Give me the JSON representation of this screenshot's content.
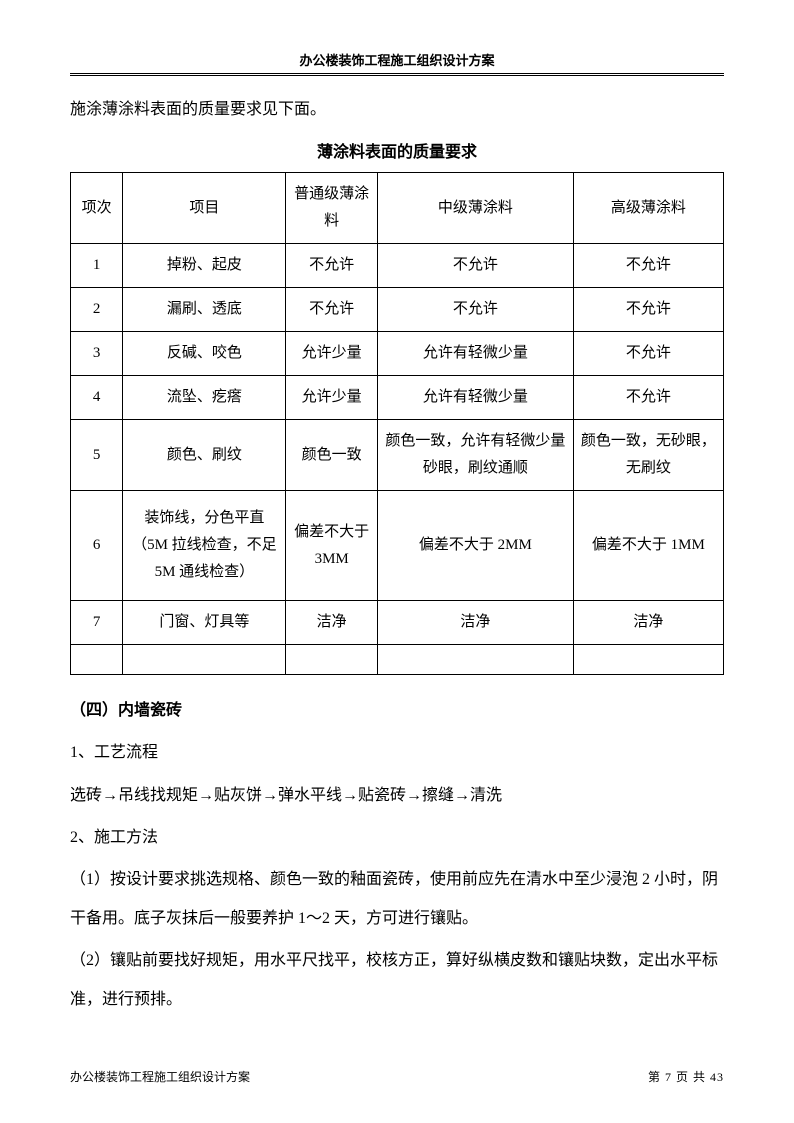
{
  "header": "办公楼装饰工程施工组织设计方案",
  "intro": "施涂薄涂料表面的质量要求见下面。",
  "table_title": "薄涂料表面的质量要求",
  "table": {
    "headers": [
      "项次",
      "项目",
      "普通级薄涂料",
      "中级薄涂料",
      "高级薄涂料"
    ],
    "rows": [
      [
        "1",
        "掉粉、起皮",
        "不允许",
        "不允许",
        "不允许"
      ],
      [
        "2",
        "漏刷、透底",
        "不允许",
        "不允许",
        "不允许"
      ],
      [
        "3",
        "反碱、咬色",
        "允许少量",
        "允许有轻微少量",
        "不允许"
      ],
      [
        "4",
        "流坠、疙瘩",
        "允许少量",
        "允许有轻微少量",
        "不允许"
      ],
      [
        "5",
        "颜色、刷纹",
        "颜色一致",
        "颜色一致，允许有轻微少量砂眼，刷纹通顺",
        "颜色一致，无砂眼，无刷纹"
      ],
      [
        "6",
        "装饰线，分色平直（5M 拉线检查，不足 5M 通线检查）",
        "偏差不大于 3MM",
        "偏差不大于 2MM",
        "偏差不大于 1MM"
      ],
      [
        "7",
        "门窗、灯具等",
        "洁净",
        "洁净",
        "洁净"
      ]
    ]
  },
  "section_heading": "（四）内墙瓷砖",
  "paragraphs": [
    "1、工艺流程",
    "选砖→吊线找规矩→贴灰饼→弹水平线→贴瓷砖→擦缝→清洗",
    "2、施工方法",
    "（1）按设计要求挑选规格、颜色一致的釉面瓷砖，使用前应先在清水中至少浸泡 2 小时，阴干备用。底子灰抹后一般要养护 1～2 天，方可进行镶贴。",
    "（2）镶贴前要找好规矩，用水平尺找平，校核方正，算好纵横皮数和镶贴块数，定出水平标准，进行预排。"
  ],
  "footer": {
    "left": "办公楼装饰工程施工组织设计方案",
    "right": "第  7  页  共   43"
  }
}
